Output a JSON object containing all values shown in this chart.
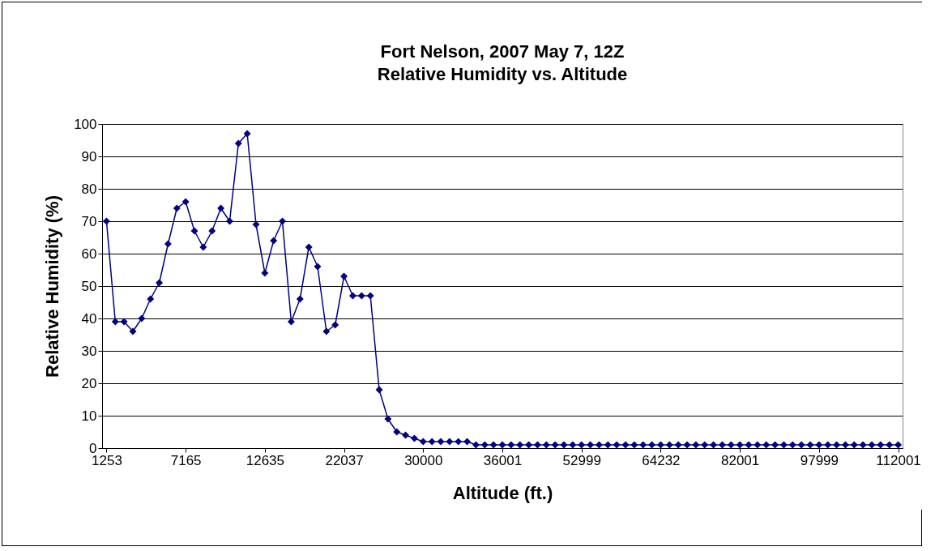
{
  "chart_data": {
    "type": "line",
    "title": "Fort Nelson, 2007 May 7, 12Z",
    "subtitle": "Relative Humidity vs. Altitude",
    "xlabel": "Altitude (ft.)",
    "ylabel": "Relative Humidity (%)",
    "categories": [
      "1253",
      null,
      null,
      null,
      null,
      null,
      null,
      null,
      null,
      "7165",
      null,
      null,
      null,
      null,
      null,
      null,
      null,
      null,
      "12635",
      null,
      null,
      null,
      null,
      null,
      null,
      null,
      null,
      "22037",
      null,
      null,
      null,
      null,
      null,
      null,
      null,
      null,
      "30000",
      null,
      null,
      null,
      null,
      null,
      null,
      null,
      null,
      "36001",
      null,
      null,
      null,
      null,
      null,
      null,
      null,
      null,
      "52999",
      null,
      null,
      null,
      null,
      null,
      null,
      null,
      null,
      "64232",
      null,
      null,
      null,
      null,
      null,
      null,
      null,
      null,
      "82001",
      null,
      null,
      null,
      null,
      null,
      null,
      null,
      null,
      "97999",
      null,
      null,
      null,
      null,
      null,
      null,
      null,
      null,
      "112001"
    ],
    "series": [
      {
        "color": "#000080",
        "values": [
          70,
          39,
          39,
          36,
          40,
          46,
          51,
          63,
          74,
          76,
          67,
          62,
          67,
          74,
          70,
          94,
          97,
          69,
          54,
          64,
          70,
          39,
          46,
          62,
          56,
          36,
          38,
          53,
          47,
          47,
          47,
          18,
          9,
          5,
          4,
          3,
          2,
          2,
          2,
          2,
          2,
          2,
          1,
          1,
          1,
          1,
          1,
          1,
          1,
          1,
          1,
          1,
          1,
          1,
          1,
          1,
          1,
          1,
          1,
          1,
          1,
          1,
          1,
          1,
          1,
          1,
          1,
          1,
          1,
          1,
          1,
          1,
          1,
          1,
          1,
          1,
          1,
          1,
          1,
          1,
          1,
          1,
          1,
          1,
          1,
          1,
          1,
          1,
          1,
          1,
          1
        ]
      }
    ],
    "ylim": [
      0,
      100
    ],
    "yticks": [
      0,
      10,
      20,
      30,
      40,
      50,
      60,
      70,
      80,
      90,
      100
    ],
    "grid": "y",
    "marker": "diamond",
    "line_style": "solid"
  }
}
